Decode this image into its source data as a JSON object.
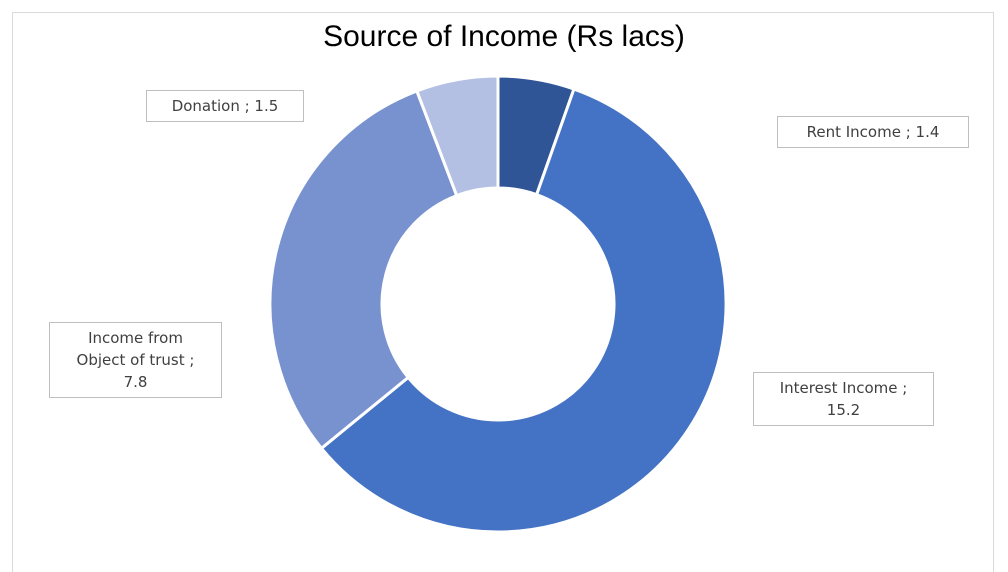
{
  "chart_data": {
    "type": "pie",
    "variant": "donut",
    "title": "Source of Income (Rs lacs)",
    "slices": [
      {
        "label": "Rent Income",
        "value": 1.4,
        "color": "#2f5597",
        "callout": [
          "Rent Income ;  1.4"
        ]
      },
      {
        "label": "Interest Income",
        "value": 15.2,
        "color": "#4472c4",
        "callout": [
          "Interest Income ;",
          "15.2"
        ]
      },
      {
        "label": "Income from Object of trust",
        "value": 7.8,
        "color": "#7892d0",
        "callout": [
          "Income from",
          "Object of trust ;",
          "7.8"
        ]
      },
      {
        "label": "Donation",
        "value": 1.5,
        "color": "#b3c0e4",
        "callout": [
          "Donation ;  1.5"
        ]
      }
    ],
    "start_angle_deg": 0,
    "direction": "clockwise",
    "slice_border_color": "#ffffff"
  }
}
